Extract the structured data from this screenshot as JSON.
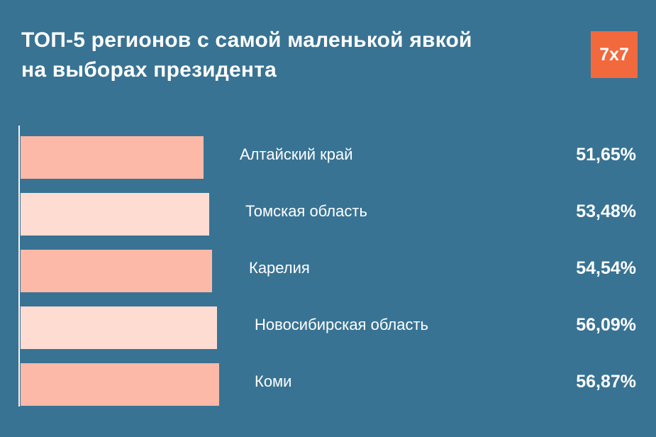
{
  "title_lines": [
    "ТОП-5 регионов с самой маленькой явкой",
    "на выборах президента"
  ],
  "logo": "7x7",
  "colors": {
    "background": "#387393",
    "bar_dark": "#fdb9a7",
    "bar_light": "#fedcd2",
    "logo": "#f2693d"
  },
  "chart_data": {
    "type": "bar",
    "orientation": "horizontal",
    "title": "ТОП-5 регионов с самой маленькой явкой на выборах президента",
    "categories": [
      "Алтайский край",
      "Томская область",
      "Карелия",
      "Новосибирская область",
      "Коми"
    ],
    "values": [
      51.65,
      53.48,
      54.54,
      56.09,
      56.87
    ],
    "value_labels": [
      "51,65%",
      "53,48%",
      "54,54%",
      "56,09%",
      "56,87%"
    ],
    "unit": "%",
    "grid": false
  }
}
